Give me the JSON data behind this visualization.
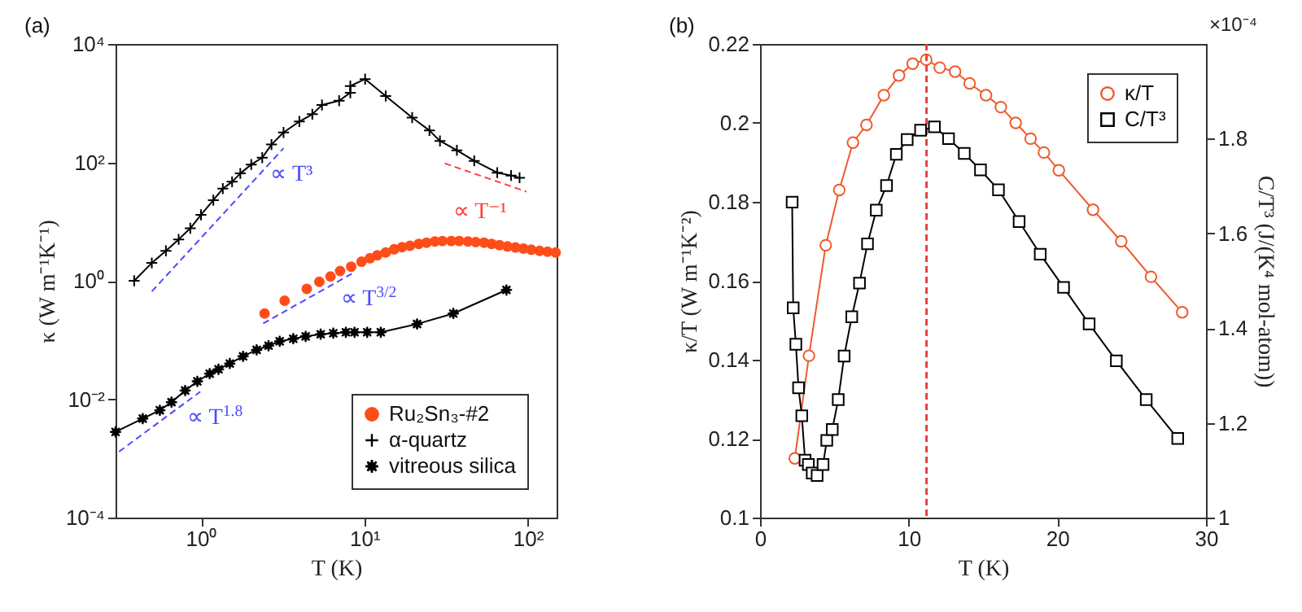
{
  "chart_data": [
    {
      "type": "line",
      "title": "(a)",
      "xlabel": "T (K)",
      "ylabel": "κ (W m⁻¹K⁻¹)",
      "log": "xy",
      "grid": false,
      "legend": "bottom right",
      "xlim": [
        0.3,
        150
      ],
      "xticks": [
        {
          "value": 1,
          "label": "10⁰"
        },
        {
          "value": 10,
          "label": "10¹"
        },
        {
          "value": 100,
          "label": "10²"
        }
      ],
      "ylim": [
        0.0001,
        10000
      ],
      "yticks": [
        {
          "value": 0.0001,
          "label": "10⁻⁴"
        },
        {
          "value": 0.01,
          "label": "10⁻²"
        },
        {
          "value": 1,
          "label": "10⁰"
        },
        {
          "value": 100,
          "label": "10²"
        },
        {
          "value": 10000,
          "label": "10⁴"
        }
      ],
      "series": [
        {
          "name": "Ru₂Sn₃-#2",
          "type": "scatter",
          "marker": "circle",
          "color": "#ff4d1a",
          "x": [
            2.45,
            3.25,
            4.44,
            5.3,
            6.2,
            7.1,
            8.3,
            9.6,
            10.8,
            12,
            13.5,
            15.2,
            17,
            19,
            21.5,
            24,
            27,
            30,
            34,
            38,
            43,
            48,
            54,
            60,
            67,
            75,
            84,
            94,
            105,
            118,
            132,
            148
          ],
          "values": [
            0.28,
            0.46,
            0.73,
            0.96,
            1.18,
            1.46,
            1.73,
            2.1,
            2.4,
            2.7,
            3.0,
            3.4,
            3.7,
            3.9,
            4.2,
            4.4,
            4.6,
            4.7,
            4.7,
            4.7,
            4.6,
            4.5,
            4.4,
            4.2,
            4.0,
            3.8,
            3.65,
            3.5,
            3.35,
            3.2,
            3.1,
            3.0
          ]
        },
        {
          "name": "α-quartz",
          "type": "line",
          "marker": "cross",
          "color": "#000000",
          "x": [
            0.39,
            0.5,
            0.61,
            0.73,
            0.86,
            1.0,
            1.19,
            1.36,
            1.55,
            1.74,
            2.03,
            2.37,
            2.7,
            3.2,
            4.0,
            4.8,
            5.5,
            7.0,
            8.2,
            8.2,
            10.1,
            13.5,
            19.6,
            25,
            29,
            36.8,
            47,
            65,
            79,
            89
          ],
          "values": [
            1.0,
            2.0,
            3.2,
            5.0,
            7.7,
            13,
            23,
            36,
            47,
            65,
            92,
            120,
            200,
            320,
            490,
            650,
            930,
            1100,
            1500,
            1950,
            2550,
            1320,
            570,
            345,
            230,
            160,
            106,
            67,
            60,
            55
          ]
        },
        {
          "name": "vitreous silica",
          "type": "line",
          "marker": "star",
          "color": "#000000",
          "x": [
            0.3,
            0.44,
            0.56,
            0.66,
            0.8,
            0.95,
            1.13,
            1.28,
            1.5,
            1.81,
            2.19,
            2.59,
            3.03,
            3.67,
            4.37,
            5.4,
            6.45,
            7.7,
            8.7,
            10.4,
            12.6,
            21,
            35,
            74
          ],
          "values": [
            0.0028,
            0.0047,
            0.0065,
            0.0089,
            0.014,
            0.02,
            0.027,
            0.032,
            0.04,
            0.053,
            0.068,
            0.08,
            0.095,
            0.105,
            0.115,
            0.125,
            0.13,
            0.135,
            0.135,
            0.135,
            0.135,
            0.186,
            0.28,
            0.7
          ]
        },
        {
          "name": "∝ T³",
          "type": "line",
          "marker": "none",
          "line_style": "dashed",
          "color": "#4a4aff",
          "x": [
            0.5,
            3.2
          ],
          "values": [
            0.66,
            173
          ]
        },
        {
          "name": "∝ T$^{3/2}$",
          "type": "line",
          "marker": "none",
          "line_style": "dashed",
          "color": "#4a4aff",
          "x": [
            2.4,
            8.6
          ],
          "values": [
            0.19,
            1.37
          ]
        },
        {
          "name": "∝ T$^{1.8}$",
          "type": "line",
          "marker": "none",
          "line_style": "dashed",
          "color": "#4a4aff",
          "x": [
            0.315,
            0.99
          ],
          "values": [
            0.0013,
            0.0134
          ]
        },
        {
          "name": "∝ T⁻¹",
          "type": "line",
          "marker": "none",
          "line_style": "dashed",
          "color": "#ff4040",
          "x": [
            31,
            98
          ],
          "values": [
            96,
            32
          ]
        }
      ]
    },
    {
      "type": "line",
      "title": "(b)",
      "xlabel": "T (K)",
      "ylabel": "κ/T (W m⁻¹K⁻²)",
      "y2label": "C/T³ (J/(K⁴ mol-atom))",
      "grid": false,
      "legend": "top right",
      "xlim": [
        0,
        30
      ],
      "xticks": [
        0,
        10,
        20,
        30
      ],
      "ylim": [
        0.1,
        0.22
      ],
      "yticks": [
        0.1,
        0.12,
        0.14,
        0.16,
        0.18,
        0.2,
        0.22
      ],
      "y2lim": [
        1,
        2
      ],
      "y2ticks": [
        1,
        1.2,
        1.4,
        1.6,
        1.8
      ],
      "annotations": [
        "×10⁻⁴"
      ],
      "ref_lines": [
        {
          "axis": "x",
          "value": 11.2,
          "color": "#e8413a",
          "line_style": "dashed"
        }
      ],
      "series": [
        {
          "name": "κ/T",
          "marker": "circle",
          "color": "#f0592b",
          "x": [
            2.34,
            3.29,
            4.42,
            5.33,
            6.25,
            7.16,
            8.33,
            9.35,
            10.27,
            11.18,
            12.09,
            13.12,
            14.1,
            15.2,
            16.2,
            17.2,
            18.2,
            19.1,
            20.1,
            22.4,
            24.3,
            26.3,
            28.4
          ],
          "values": [
            0.115,
            0.141,
            0.169,
            0.183,
            0.195,
            0.1995,
            0.207,
            0.212,
            0.215,
            0.216,
            0.214,
            0.213,
            0.21,
            0.207,
            0.204,
            0.2,
            0.196,
            0.1925,
            0.188,
            0.178,
            0.17,
            0.161,
            0.152
          ]
        },
        {
          "name": "C/T³",
          "axis": "y2",
          "marker": "square",
          "color": "#000000",
          "x": [
            2.16,
            2.23,
            2.41,
            2.59,
            2.81,
            3.03,
            3.25,
            3.51,
            3.84,
            4.24,
            4.49,
            4.86,
            5.26,
            5.66,
            6.17,
            6.69,
            7.23,
            7.82,
            8.51,
            9.17,
            9.9,
            10.8,
            11.73,
            12.68,
            13.74,
            14.83,
            16.04,
            17.43,
            18.85,
            20.42,
            22.14,
            23.97,
            25.98,
            28.1
          ],
          "values": [
            1.666,
            1.443,
            1.366,
            1.274,
            1.215,
            1.121,
            1.112,
            1.094,
            1.089,
            1.112,
            1.163,
            1.186,
            1.249,
            1.341,
            1.424,
            1.495,
            1.578,
            1.649,
            1.701,
            1.767,
            1.798,
            1.818,
            1.825,
            1.8,
            1.769,
            1.734,
            1.692,
            1.625,
            1.556,
            1.486,
            1.409,
            1.331,
            1.249,
            1.167
          ]
        }
      ]
    }
  ]
}
